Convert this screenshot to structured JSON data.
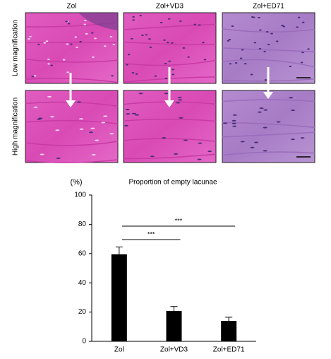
{
  "panels": {
    "columns": [
      "Zol",
      "Zol+VD3",
      "Zol+ED71"
    ],
    "rows": [
      "Low magnification",
      "High magnification"
    ]
  },
  "chart_data": {
    "type": "bar",
    "title": "Proportion of empty lacunae",
    "y_unit": "(%)",
    "categories": [
      "Zol",
      "Zol+VD3",
      "Zol+ED71"
    ],
    "values": [
      59.5,
      20.8,
      14
    ],
    "errors": [
      5,
      3,
      2.5
    ],
    "color": "#000000",
    "ylim": [
      0,
      100
    ],
    "yticks": [
      0,
      20,
      40,
      60,
      80,
      100
    ],
    "annotations": [
      {
        "label": "***",
        "pair": [
          0,
          1
        ]
      },
      {
        "label": "***",
        "pair": [
          0,
          2
        ]
      }
    ]
  }
}
